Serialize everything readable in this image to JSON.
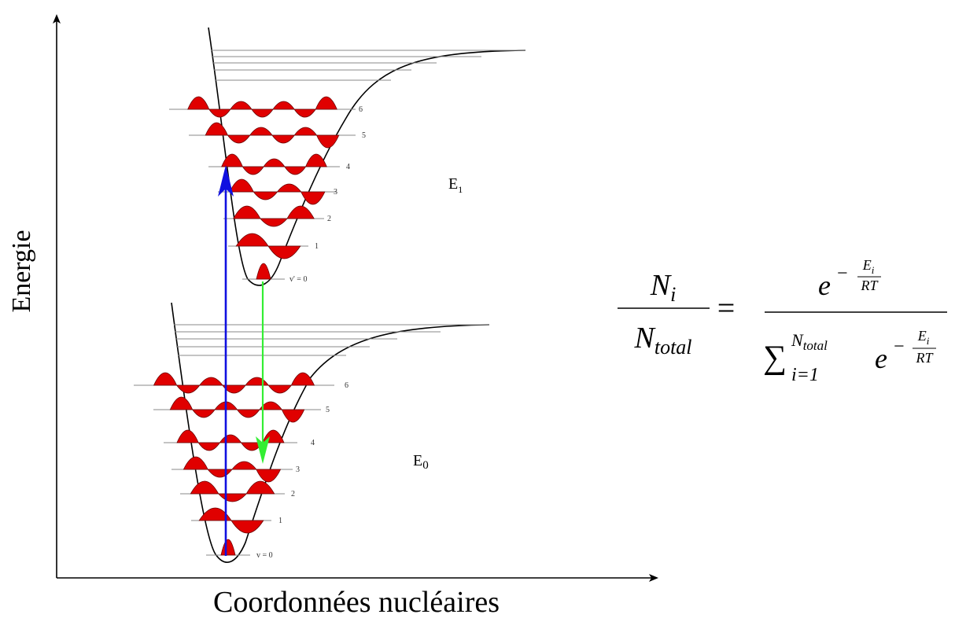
{
  "axes": {
    "y_label": "Energie",
    "x_label": "Coordonnées nucléaires"
  },
  "states": {
    "excited": {
      "name": "E",
      "subscript": "1",
      "levels": [
        "v' = 0",
        "1",
        "2",
        "3",
        "4",
        "5",
        "6"
      ]
    },
    "ground": {
      "name": "E",
      "subscript": "0",
      "levels": [
        "v = 0",
        "1",
        "2",
        "3",
        "4",
        "5",
        "6"
      ]
    }
  },
  "transitions": {
    "absorption": {
      "from_level": 0,
      "to_level": 4,
      "color": "#1010e0"
    },
    "emission": {
      "from_level": 0,
      "to_level": 4,
      "color": "#33ee33"
    }
  },
  "colors": {
    "wavefunction": "#e00000",
    "curve": "#000000",
    "level": "#888888"
  },
  "equation": {
    "lhs_num_base": "N",
    "lhs_num_sub": "i",
    "lhs_den_base": "N",
    "lhs_den_sub": "total",
    "equals": "=",
    "rhs_num_base": "e",
    "exp_sign": "−",
    "exp_num_base": "E",
    "exp_num_sub": "i",
    "exp_den": "RT",
    "sum_symbol": "∑",
    "sum_lower": "i=1",
    "sum_upper_base": "N",
    "sum_upper_sub": "total",
    "rhs_den_base": "e"
  }
}
